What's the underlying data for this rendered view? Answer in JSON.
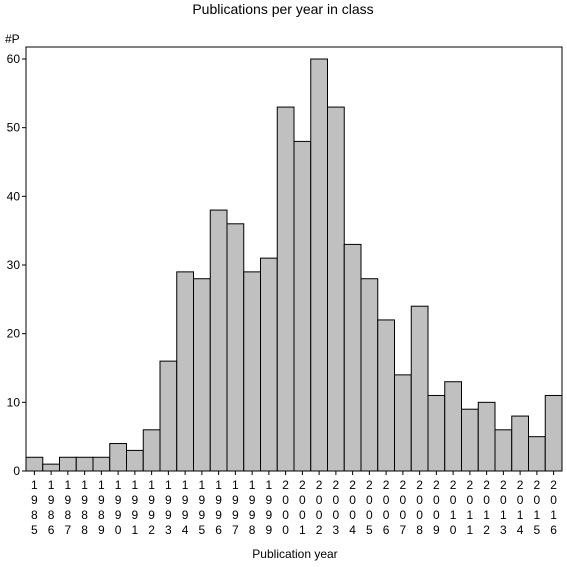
{
  "chart_data": {
    "type": "bar",
    "title": "Publications per year in class",
    "ylabel": "#P",
    "xlabel": "Publication year",
    "categories": [
      "1985",
      "1986",
      "1987",
      "1988",
      "1989",
      "1990",
      "1991",
      "1992",
      "1993",
      "1994",
      "1995",
      "1996",
      "1997",
      "1998",
      "1999",
      "2000",
      "2001",
      "2002",
      "2003",
      "2004",
      "2005",
      "2006",
      "2007",
      "2008",
      "2009",
      "2010",
      "2011",
      "2012",
      "2013",
      "2014",
      "2015",
      "2016"
    ],
    "values": [
      2,
      1,
      2,
      2,
      2,
      4,
      3,
      6,
      16,
      29,
      28,
      38,
      36,
      29,
      31,
      53,
      48,
      60,
      53,
      33,
      28,
      22,
      14,
      24,
      11,
      13,
      9,
      10,
      6,
      8,
      5,
      11
    ],
    "ylim": [
      0,
      60
    ],
    "yticks": [
      0,
      10,
      20,
      30,
      40,
      50,
      60
    ],
    "bar_color": "#c0c0c0",
    "grid": false
  }
}
